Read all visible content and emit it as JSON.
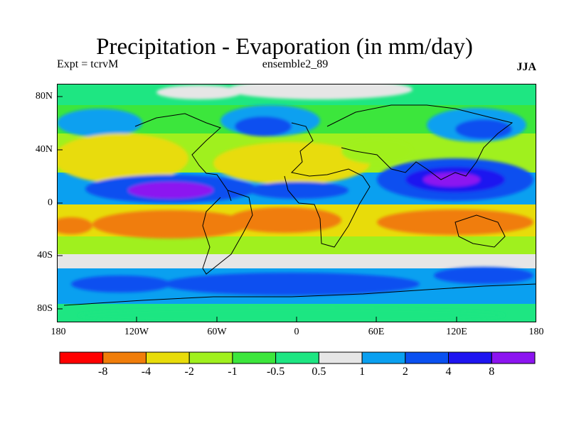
{
  "title": "Precipitation - Evaporation (in mm/day)",
  "subtitle_left": "Expt = tcrvM",
  "subtitle_center": "ensemble2_89",
  "subtitle_right": "JJA",
  "lat_labels": [
    "80N",
    "40N",
    "0",
    "40S",
    "80S"
  ],
  "lon_labels": [
    "180",
    "120W",
    "60W",
    "0",
    "60E",
    "120E",
    "180"
  ],
  "colorbar": {
    "labels": [
      "-8",
      "-4",
      "-2",
      "-1",
      "-0.5",
      "0.5",
      "1",
      "2",
      "4",
      "8"
    ],
    "colors": [
      "#ff0000",
      "#f07d0a",
      "#e8dc0a",
      "#a0f01e",
      "#3ce63c",
      "#1ee682",
      "#e6e6e6",
      "#0aa0f0",
      "#0a50f0",
      "#1e14f0",
      "#8c14f0"
    ]
  }
}
